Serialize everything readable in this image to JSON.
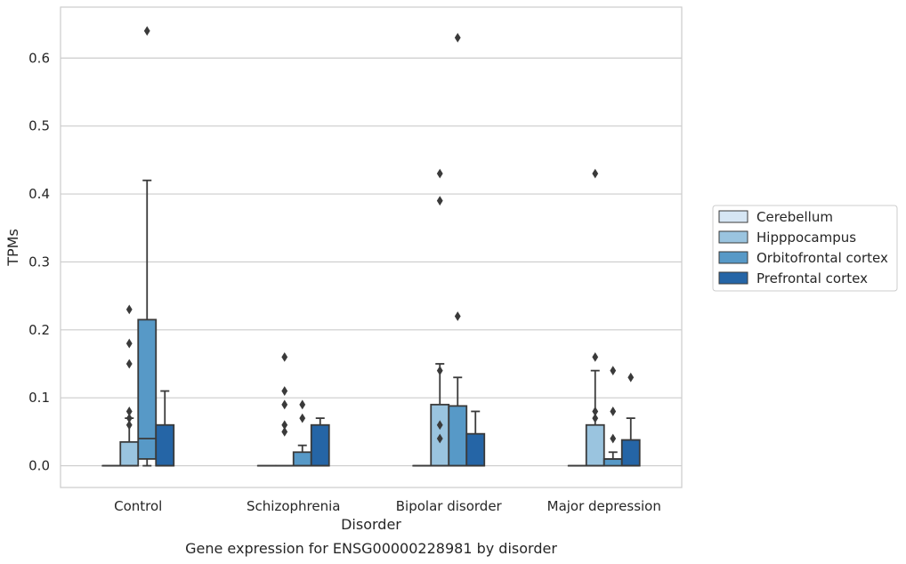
{
  "chart_data": {
    "type": "boxplot",
    "title": "Gene expression for ENSG00000228981 by disorder",
    "xlabel": "Disorder",
    "ylabel": "TPMs",
    "ylim": [
      -0.032,
      0.675
    ],
    "yticks": [
      "0.0",
      "0.1",
      "0.2",
      "0.3",
      "0.4",
      "0.5",
      "0.6"
    ],
    "grid": true,
    "legend_position": "right",
    "categories": [
      "Control",
      "Schizophrenia",
      "Bipolar disorder",
      "Major depression"
    ],
    "series": [
      {
        "name": "Cerebellum",
        "color": "#d6e6f4",
        "boxes": [
          {
            "q1": 0.0,
            "median": 0.0,
            "q3": 0.0,
            "whisker_low": 0.0,
            "whisker_high": 0.0,
            "outliers": []
          },
          {
            "q1": 0.0,
            "median": 0.0,
            "q3": 0.0,
            "whisker_low": 0.0,
            "whisker_high": 0.0,
            "outliers": []
          },
          {
            "q1": 0.0,
            "median": 0.0,
            "q3": 0.0,
            "whisker_low": 0.0,
            "whisker_high": 0.0,
            "outliers": []
          },
          {
            "q1": 0.0,
            "median": 0.0,
            "q3": 0.0,
            "whisker_low": 0.0,
            "whisker_high": 0.0,
            "outliers": []
          }
        ]
      },
      {
        "name": "Hipppocampus",
        "color": "#9ac4df",
        "boxes": [
          {
            "q1": 0.0,
            "median": 0.0,
            "q3": 0.035,
            "whisker_low": 0.0,
            "whisker_high": 0.07,
            "outliers": [
              0.06,
              0.07,
              0.08,
              0.15,
              0.18,
              0.23
            ]
          },
          {
            "q1": 0.0,
            "median": 0.0,
            "q3": 0.0,
            "whisker_low": 0.0,
            "whisker_high": 0.0,
            "outliers": [
              0.05,
              0.06,
              0.09,
              0.11,
              0.16
            ]
          },
          {
            "q1": 0.0,
            "median": 0.0,
            "q3": 0.09,
            "whisker_low": 0.0,
            "whisker_high": 0.15,
            "outliers": [
              0.04,
              0.06,
              0.14,
              0.39,
              0.43
            ]
          },
          {
            "q1": 0.0,
            "median": 0.0,
            "q3": 0.06,
            "whisker_low": 0.0,
            "whisker_high": 0.14,
            "outliers": [
              0.07,
              0.08,
              0.16,
              0.43
            ]
          }
        ]
      },
      {
        "name": "Orbitofrontal cortex",
        "color": "#5799c7",
        "boxes": [
          {
            "q1": 0.01,
            "median": 0.04,
            "q3": 0.215,
            "whisker_low": 0.0,
            "whisker_high": 0.42,
            "outliers": [
              0.64
            ]
          },
          {
            "q1": 0.0,
            "median": 0.0,
            "q3": 0.02,
            "whisker_low": 0.0,
            "whisker_high": 0.03,
            "outliers": [
              0.07,
              0.09
            ]
          },
          {
            "q1": 0.0,
            "median": 0.0,
            "q3": 0.088,
            "whisker_low": 0.0,
            "whisker_high": 0.13,
            "outliers": [
              0.22,
              0.63
            ]
          },
          {
            "q1": 0.0,
            "median": 0.01,
            "q3": 0.01,
            "whisker_low": 0.0,
            "whisker_high": 0.02,
            "outliers": [
              0.04,
              0.08,
              0.14
            ]
          }
        ]
      },
      {
        "name": "Prefrontal cortex",
        "color": "#2565a6",
        "boxes": [
          {
            "q1": 0.0,
            "median": 0.0,
            "q3": 0.06,
            "whisker_low": 0.0,
            "whisker_high": 0.11,
            "outliers": []
          },
          {
            "q1": 0.0,
            "median": 0.0,
            "q3": 0.06,
            "whisker_low": 0.0,
            "whisker_high": 0.07,
            "outliers": []
          },
          {
            "q1": 0.0,
            "median": 0.0,
            "q3": 0.047,
            "whisker_low": 0.0,
            "whisker_high": 0.08,
            "outliers": []
          },
          {
            "q1": 0.0,
            "median": 0.0,
            "q3": 0.038,
            "whisker_low": 0.0,
            "whisker_high": 0.07,
            "outliers": [
              0.13
            ]
          }
        ]
      }
    ]
  },
  "colors": {
    "edge": "#3a3a3a",
    "grid": "#cccccc",
    "frame": "#cccccc"
  }
}
